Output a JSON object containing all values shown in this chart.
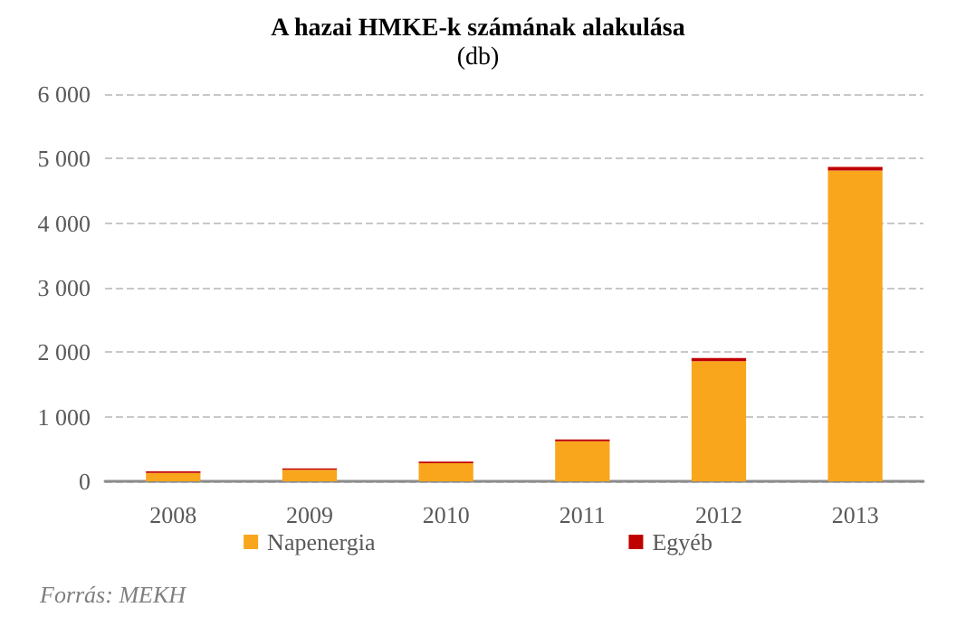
{
  "chart_data": {
    "type": "bar",
    "title": "A hazai HMKE-k számának alakulása",
    "subtitle": "(db)",
    "categories": [
      "2008",
      "2009",
      "2010",
      "2011",
      "2012",
      "2013"
    ],
    "series": [
      {
        "name": "Napenergia",
        "color": "#f9a61c",
        "values": [
          130,
          180,
          280,
          620,
          1860,
          4815
        ]
      },
      {
        "name": "Egyéb",
        "color": "#c00000",
        "values": [
          25,
          20,
          25,
          30,
          50,
          55
        ]
      }
    ],
    "stacked": true,
    "ylim": [
      0,
      6000
    ],
    "yticks": [
      {
        "value": 0,
        "label": "0"
      },
      {
        "value": 1000,
        "label": "1 000"
      },
      {
        "value": 2000,
        "label": "2 000"
      },
      {
        "value": 3000,
        "label": "3 000"
      },
      {
        "value": 4000,
        "label": "4 000"
      },
      {
        "value": 5000,
        "label": "5 000"
      },
      {
        "value": 6000,
        "label": "6 000"
      }
    ],
    "grid": "y",
    "legend": "bottom",
    "annotations": [
      "Forrás: MEKH"
    ]
  }
}
